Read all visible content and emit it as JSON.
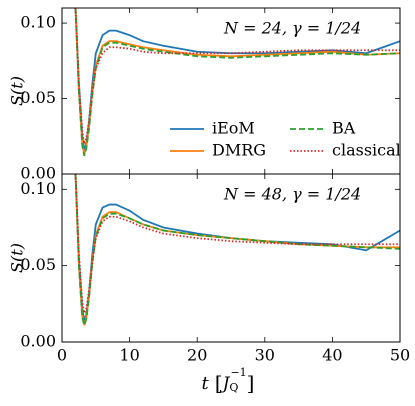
{
  "chart_data": [
    {
      "type": "line",
      "annotation": "N = 24, γ = 1/24",
      "ylabel": "S(t)",
      "x": [
        2,
        2.5,
        3,
        3.3,
        3.6,
        4,
        4.5,
        5,
        6,
        7,
        8,
        10,
        12,
        15,
        20,
        25,
        30,
        35,
        40,
        45,
        50
      ],
      "series": [
        {
          "name": "iEoM",
          "color": "#1f77b4",
          "dash": "solid",
          "values": [
            0.11,
            0.06,
            0.025,
            0.016,
            0.02,
            0.035,
            0.06,
            0.08,
            0.092,
            0.095,
            0.095,
            0.092,
            0.088,
            0.085,
            0.081,
            0.08,
            0.08,
            0.081,
            0.082,
            0.08,
            0.088
          ]
        },
        {
          "name": "DMRG",
          "color": "#ff7f0e",
          "dash": "solid",
          "values": [
            0.11,
            0.055,
            0.02,
            0.013,
            0.018,
            0.032,
            0.055,
            0.072,
            0.085,
            0.088,
            0.088,
            0.086,
            0.084,
            0.082,
            0.079,
            0.078,
            0.079,
            0.08,
            0.081,
            0.079,
            0.08
          ]
        },
        {
          "name": "BA",
          "color": "#2ca02c",
          "dash": "dashed",
          "values": [
            0.11,
            0.055,
            0.019,
            0.012,
            0.017,
            0.03,
            0.053,
            0.07,
            0.084,
            0.087,
            0.087,
            0.085,
            0.083,
            0.081,
            0.078,
            0.077,
            0.078,
            0.079,
            0.08,
            0.079,
            0.08
          ]
        },
        {
          "name": "classical",
          "color": "#d62728",
          "dash": "dotted",
          "values": [
            0.11,
            0.06,
            0.028,
            0.02,
            0.024,
            0.035,
            0.055,
            0.07,
            0.08,
            0.084,
            0.084,
            0.083,
            0.081,
            0.08,
            0.08,
            0.08,
            0.081,
            0.082,
            0.082,
            0.082,
            0.082
          ]
        }
      ],
      "xlim": [
        0,
        50
      ],
      "xticks": [
        0,
        10,
        20,
        30,
        40,
        50
      ],
      "show_xticklabels": false,
      "ylim": [
        0,
        0.11
      ],
      "yticks": [
        {
          "value": 0,
          "label": "0.00"
        },
        {
          "value": 0.05,
          "label": "0.05"
        },
        {
          "value": 0.1,
          "label": "0.10"
        }
      ],
      "legend": "lower right",
      "legend_columns": 2
    },
    {
      "type": "line",
      "annotation": "N = 48, γ = 1/24",
      "ylabel": "S(t)",
      "xlabel_parts": [
        "t",
        "[",
        "J",
        "Q",
        "−1",
        "]"
      ],
      "x": [
        2,
        2.5,
        3,
        3.3,
        3.6,
        4,
        4.5,
        5,
        6,
        7,
        8,
        10,
        12,
        15,
        20,
        25,
        30,
        35,
        40,
        45,
        50
      ],
      "series": [
        {
          "color": "#1f77b4",
          "dash": "solid",
          "values": [
            0.11,
            0.055,
            0.022,
            0.014,
            0.018,
            0.032,
            0.058,
            0.077,
            0.088,
            0.09,
            0.09,
            0.086,
            0.08,
            0.075,
            0.071,
            0.068,
            0.066,
            0.065,
            0.064,
            0.06,
            0.073
          ]
        },
        {
          "color": "#ff7f0e",
          "dash": "solid",
          "values": [
            0.11,
            0.05,
            0.017,
            0.011,
            0.016,
            0.03,
            0.053,
            0.07,
            0.082,
            0.085,
            0.085,
            0.081,
            0.077,
            0.073,
            0.07,
            0.068,
            0.066,
            0.064,
            0.063,
            0.062,
            0.062
          ]
        },
        {
          "color": "#2ca02c",
          "dash": "dashed",
          "values": [
            0.11,
            0.05,
            0.016,
            0.011,
            0.015,
            0.029,
            0.052,
            0.069,
            0.081,
            0.084,
            0.084,
            0.081,
            0.077,
            0.073,
            0.07,
            0.068,
            0.066,
            0.064,
            0.063,
            0.062,
            0.061
          ]
        },
        {
          "color": "#d62728",
          "dash": "dotted",
          "values": [
            0.11,
            0.058,
            0.026,
            0.019,
            0.022,
            0.034,
            0.053,
            0.068,
            0.079,
            0.082,
            0.082,
            0.079,
            0.075,
            0.071,
            0.068,
            0.066,
            0.065,
            0.064,
            0.064,
            0.064,
            0.064
          ]
        }
      ],
      "xlim": [
        0,
        50
      ],
      "xticks": [
        0,
        10,
        20,
        30,
        40,
        50
      ],
      "show_xticklabels": true,
      "ylim": [
        0,
        0.11
      ],
      "yticks": [
        {
          "value": 0,
          "label": "0.00"
        },
        {
          "value": 0.05,
          "label": "0.05"
        },
        {
          "value": 0.1,
          "label": "0.10"
        }
      ]
    }
  ]
}
